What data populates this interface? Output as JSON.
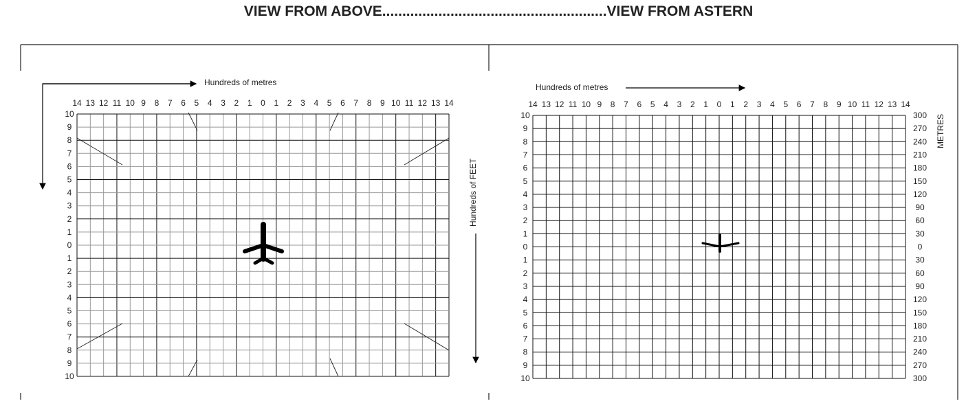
{
  "title": "VIEW FROM ABOVE........................................................VIEW FROM ASTERN",
  "left_panel": {
    "x_axis_label": "Hundreds of metres",
    "y_axis_label": "Hundreds of FEET",
    "x_ticks": [
      "14",
      "13",
      "12",
      "11",
      "10",
      "9",
      "8",
      "7",
      "6",
      "5",
      "4",
      "3",
      "2",
      "1",
      "0",
      "1",
      "2",
      "3",
      "4",
      "5",
      "6",
      "7",
      "8",
      "9",
      "10",
      "11",
      "12",
      "13",
      "14"
    ],
    "y_ticks": [
      "10",
      "9",
      "8",
      "7",
      "6",
      "5",
      "4",
      "3",
      "2",
      "1",
      "0",
      "1",
      "2",
      "3",
      "4",
      "5",
      "6",
      "7",
      "8",
      "9",
      "10"
    ],
    "aircraft_icon": "aircraft-top-view-icon"
  },
  "right_panel": {
    "x_axis_label": "Hundreds of metres",
    "y_axis_label_right": "METRES",
    "x_ticks": [
      "14",
      "13",
      "12",
      "11",
      "10",
      "9",
      "8",
      "7",
      "6",
      "5",
      "4",
      "3",
      "2",
      "1",
      "0",
      "1",
      "2",
      "3",
      "4",
      "5",
      "6",
      "7",
      "8",
      "9",
      "10",
      "11",
      "12",
      "13",
      "14"
    ],
    "y_ticks": [
      "10",
      "9",
      "8",
      "7",
      "6",
      "5",
      "4",
      "3",
      "2",
      "1",
      "0",
      "1",
      "2",
      "3",
      "4",
      "5",
      "6",
      "7",
      "8",
      "9",
      "10"
    ],
    "y_ticks_right": [
      "300",
      "270",
      "240",
      "210",
      "180",
      "150",
      "120",
      "90",
      "60",
      "30",
      "0",
      "30",
      "60",
      "90",
      "120",
      "150",
      "180",
      "210",
      "240",
      "270",
      "300"
    ],
    "aircraft_icon": "aircraft-rear-view-icon"
  }
}
